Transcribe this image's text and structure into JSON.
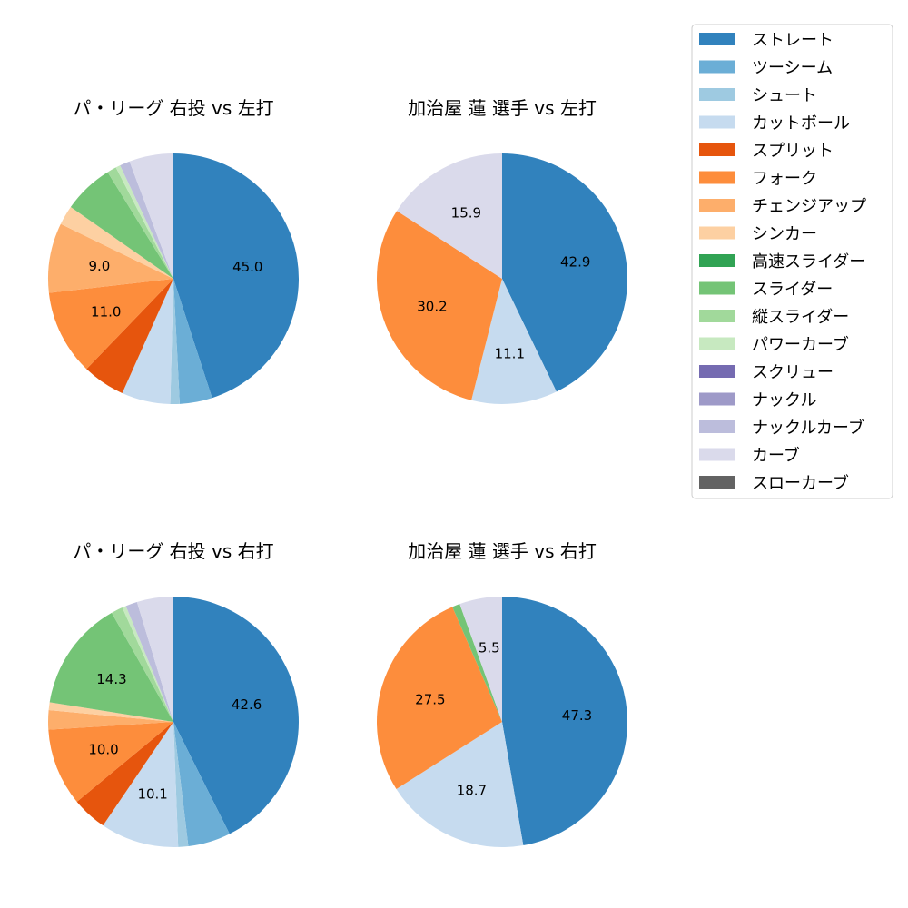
{
  "chart_data": {
    "type": "pie",
    "legend_position": "top-right",
    "categories": [
      "ストレート",
      "ツーシーム",
      "シュート",
      "カットボール",
      "スプリット",
      "フォーク",
      "チェンジアップ",
      "シンカー",
      "高速スライダー",
      "スライダー",
      "縦スライダー",
      "パワーカーブ",
      "スクリュー",
      "ナックル",
      "ナックルカーブ",
      "カーブ",
      "スローカーブ"
    ],
    "colors": [
      "#3182bd",
      "#6baed6",
      "#9ecae1",
      "#c6dbef",
      "#e6550d",
      "#fd8d3c",
      "#fdae6b",
      "#fdd0a2",
      "#31a354",
      "#74c476",
      "#a1d99b",
      "#c7e9c0",
      "#756bb1",
      "#9e9ac8",
      "#bcbddc",
      "#dadaeb",
      "#636363"
    ],
    "charts": [
      {
        "title": "パ・リーグ 右投 vs 左打",
        "values": [
          45.0,
          4.2,
          1.2,
          6.3,
          5.5,
          11.0,
          9.0,
          2.5,
          0,
          6.5,
          1.2,
          0.6,
          0,
          0,
          1.3,
          5.7,
          0
        ],
        "labels": [
          "45.0",
          "",
          "",
          "",
          "",
          "11.0",
          "9.0",
          "",
          "",
          "",
          "",
          "",
          "",
          "",
          "",
          "",
          ""
        ]
      },
      {
        "title": "加治屋 蓮 選手 vs 左打",
        "values": [
          42.9,
          0,
          0,
          11.1,
          0,
          30.2,
          0,
          0,
          0,
          0,
          0,
          0,
          0,
          0,
          0,
          15.9,
          0
        ],
        "labels": [
          "42.9",
          "",
          "",
          "11.1",
          "",
          "30.2",
          "",
          "",
          "",
          "",
          "",
          "",
          "",
          "",
          "",
          "15.9",
          ""
        ]
      },
      {
        "title": "パ・リーグ 右投 vs 右打",
        "values": [
          42.6,
          5.5,
          1.3,
          10.1,
          4.5,
          10.0,
          2.5,
          1.0,
          0,
          14.3,
          1.5,
          0.5,
          0,
          0,
          1.5,
          4.7,
          0
        ],
        "labels": [
          "42.6",
          "",
          "",
          "10.1",
          "",
          "10.0",
          "",
          "",
          "",
          "14.3",
          "",
          "",
          "",
          "",
          "",
          "",
          ""
        ]
      },
      {
        "title": "加治屋 蓮 選手 vs 右打",
        "values": [
          47.3,
          0,
          0,
          18.7,
          0,
          27.5,
          0,
          0,
          0,
          1.0,
          0,
          0,
          0,
          0,
          0,
          5.5,
          0
        ],
        "labels": [
          "47.3",
          "",
          "",
          "18.7",
          "",
          "27.5",
          "",
          "",
          "",
          "",
          "",
          "",
          "",
          "",
          "",
          "5.5",
          ""
        ]
      }
    ]
  }
}
